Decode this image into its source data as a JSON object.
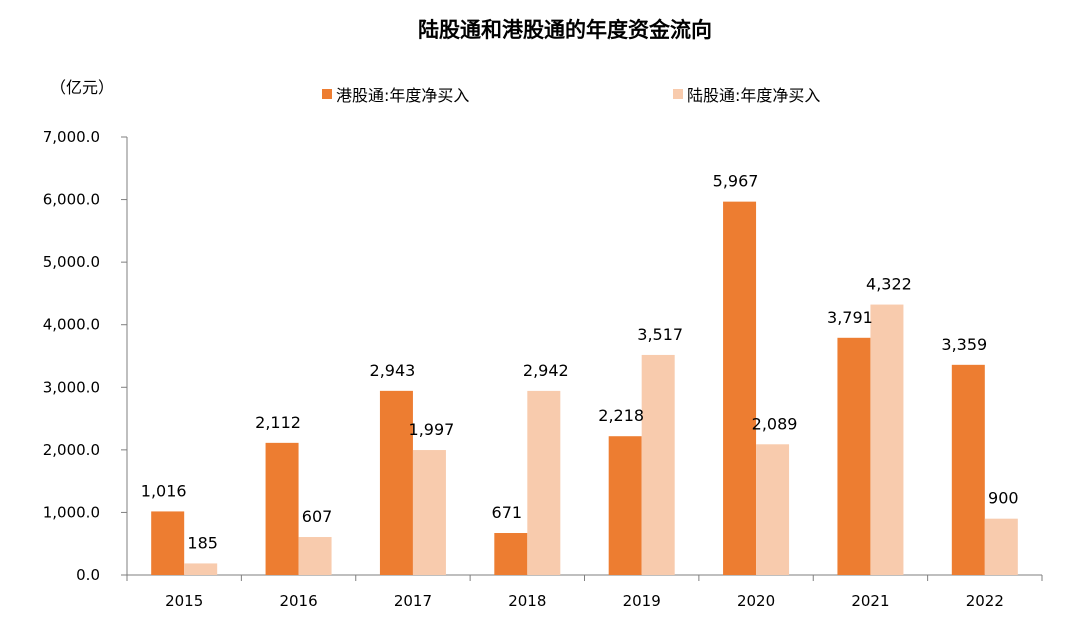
{
  "chart_data": {
    "type": "bar",
    "title": "陆股通和港股通的年度资金流向",
    "unit_label": "（亿元）",
    "categories": [
      "2015",
      "2016",
      "2017",
      "2018",
      "2019",
      "2020",
      "2021",
      "2022"
    ],
    "ylim": [
      0,
      7000
    ],
    "yticks": [
      {
        "value": 0,
        "label": "0.0"
      },
      {
        "value": 1000,
        "label": "1,000.0"
      },
      {
        "value": 2000,
        "label": "2,000.0"
      },
      {
        "value": 3000,
        "label": "3,000.0"
      },
      {
        "value": 4000,
        "label": "4,000.0"
      },
      {
        "value": 5000,
        "label": "5,000.0"
      },
      {
        "value": 6000,
        "label": "6,000.0"
      },
      {
        "value": 7000,
        "label": "7,000.0"
      }
    ],
    "legend_position": "top",
    "grid": false,
    "series": [
      {
        "name": "港股通:年度净买入",
        "color": "#ED7D31",
        "values": [
          1016,
          2112,
          2943,
          671,
          2218,
          5967,
          3791,
          3359
        ],
        "labels": [
          "1,016",
          "2,112",
          "2,943",
          "671",
          "2,218",
          "5,967",
          "3,791",
          "3,359"
        ]
      },
      {
        "name": "陆股通:年度净买入",
        "color": "#F8CBAD",
        "values": [
          185,
          607,
          1997,
          2942,
          3517,
          2089,
          4322,
          900
        ],
        "labels": [
          "185",
          "607",
          "1,997",
          "2,942",
          "3,517",
          "2,089",
          "4,322",
          "900"
        ]
      }
    ]
  }
}
